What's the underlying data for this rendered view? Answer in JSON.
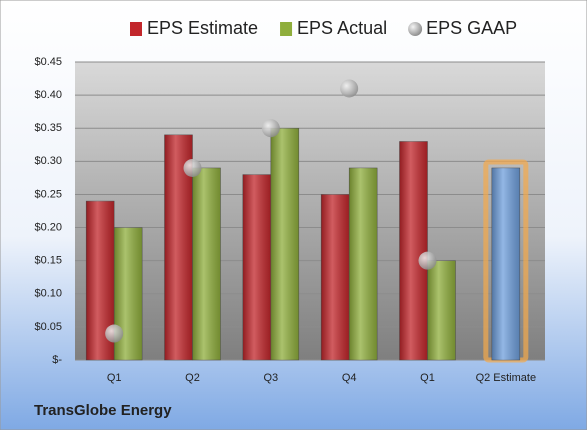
{
  "chart_data": {
    "type": "bar",
    "title": "TransGlobe Energy",
    "categories": [
      "Q1",
      "Q2",
      "Q3",
      "Q4",
      "Q1",
      "Q2 Estimate"
    ],
    "series": [
      {
        "name": "EPS Estimate",
        "color": "#c2262b",
        "colors": [
          "#c2262b",
          "#c2262b",
          "#c2262b",
          "#c2262b",
          "#c2262b",
          "#6f9fdc"
        ],
        "values": [
          0.24,
          0.34,
          0.28,
          0.25,
          0.33,
          0.29
        ]
      },
      {
        "name": "EPS Actual",
        "color": "#8fae3c",
        "values": [
          0.2,
          0.29,
          0.35,
          0.29,
          0.15,
          null
        ]
      },
      {
        "name": "EPS GAAP",
        "type": "scatter",
        "color": "#b8b8b8",
        "values": [
          0.04,
          0.29,
          0.35,
          0.41,
          0.15,
          null
        ]
      }
    ],
    "ylim": [
      0,
      0.45
    ],
    "yticks": [
      {
        "value": 0,
        "label": "$-"
      },
      {
        "value": 0.05,
        "label": "$0.05"
      },
      {
        "value": 0.1,
        "label": "$0.10"
      },
      {
        "value": 0.15,
        "label": "$0.15"
      },
      {
        "value": 0.2,
        "label": "$0.20"
      },
      {
        "value": 0.25,
        "label": "$0.25"
      },
      {
        "value": 0.3,
        "label": "$0.30"
      },
      {
        "value": 0.35,
        "label": "$0.35"
      },
      {
        "value": 0.4,
        "label": "$0.40"
      },
      {
        "value": 0.45,
        "label": "$0.45"
      }
    ],
    "grid": true
  }
}
